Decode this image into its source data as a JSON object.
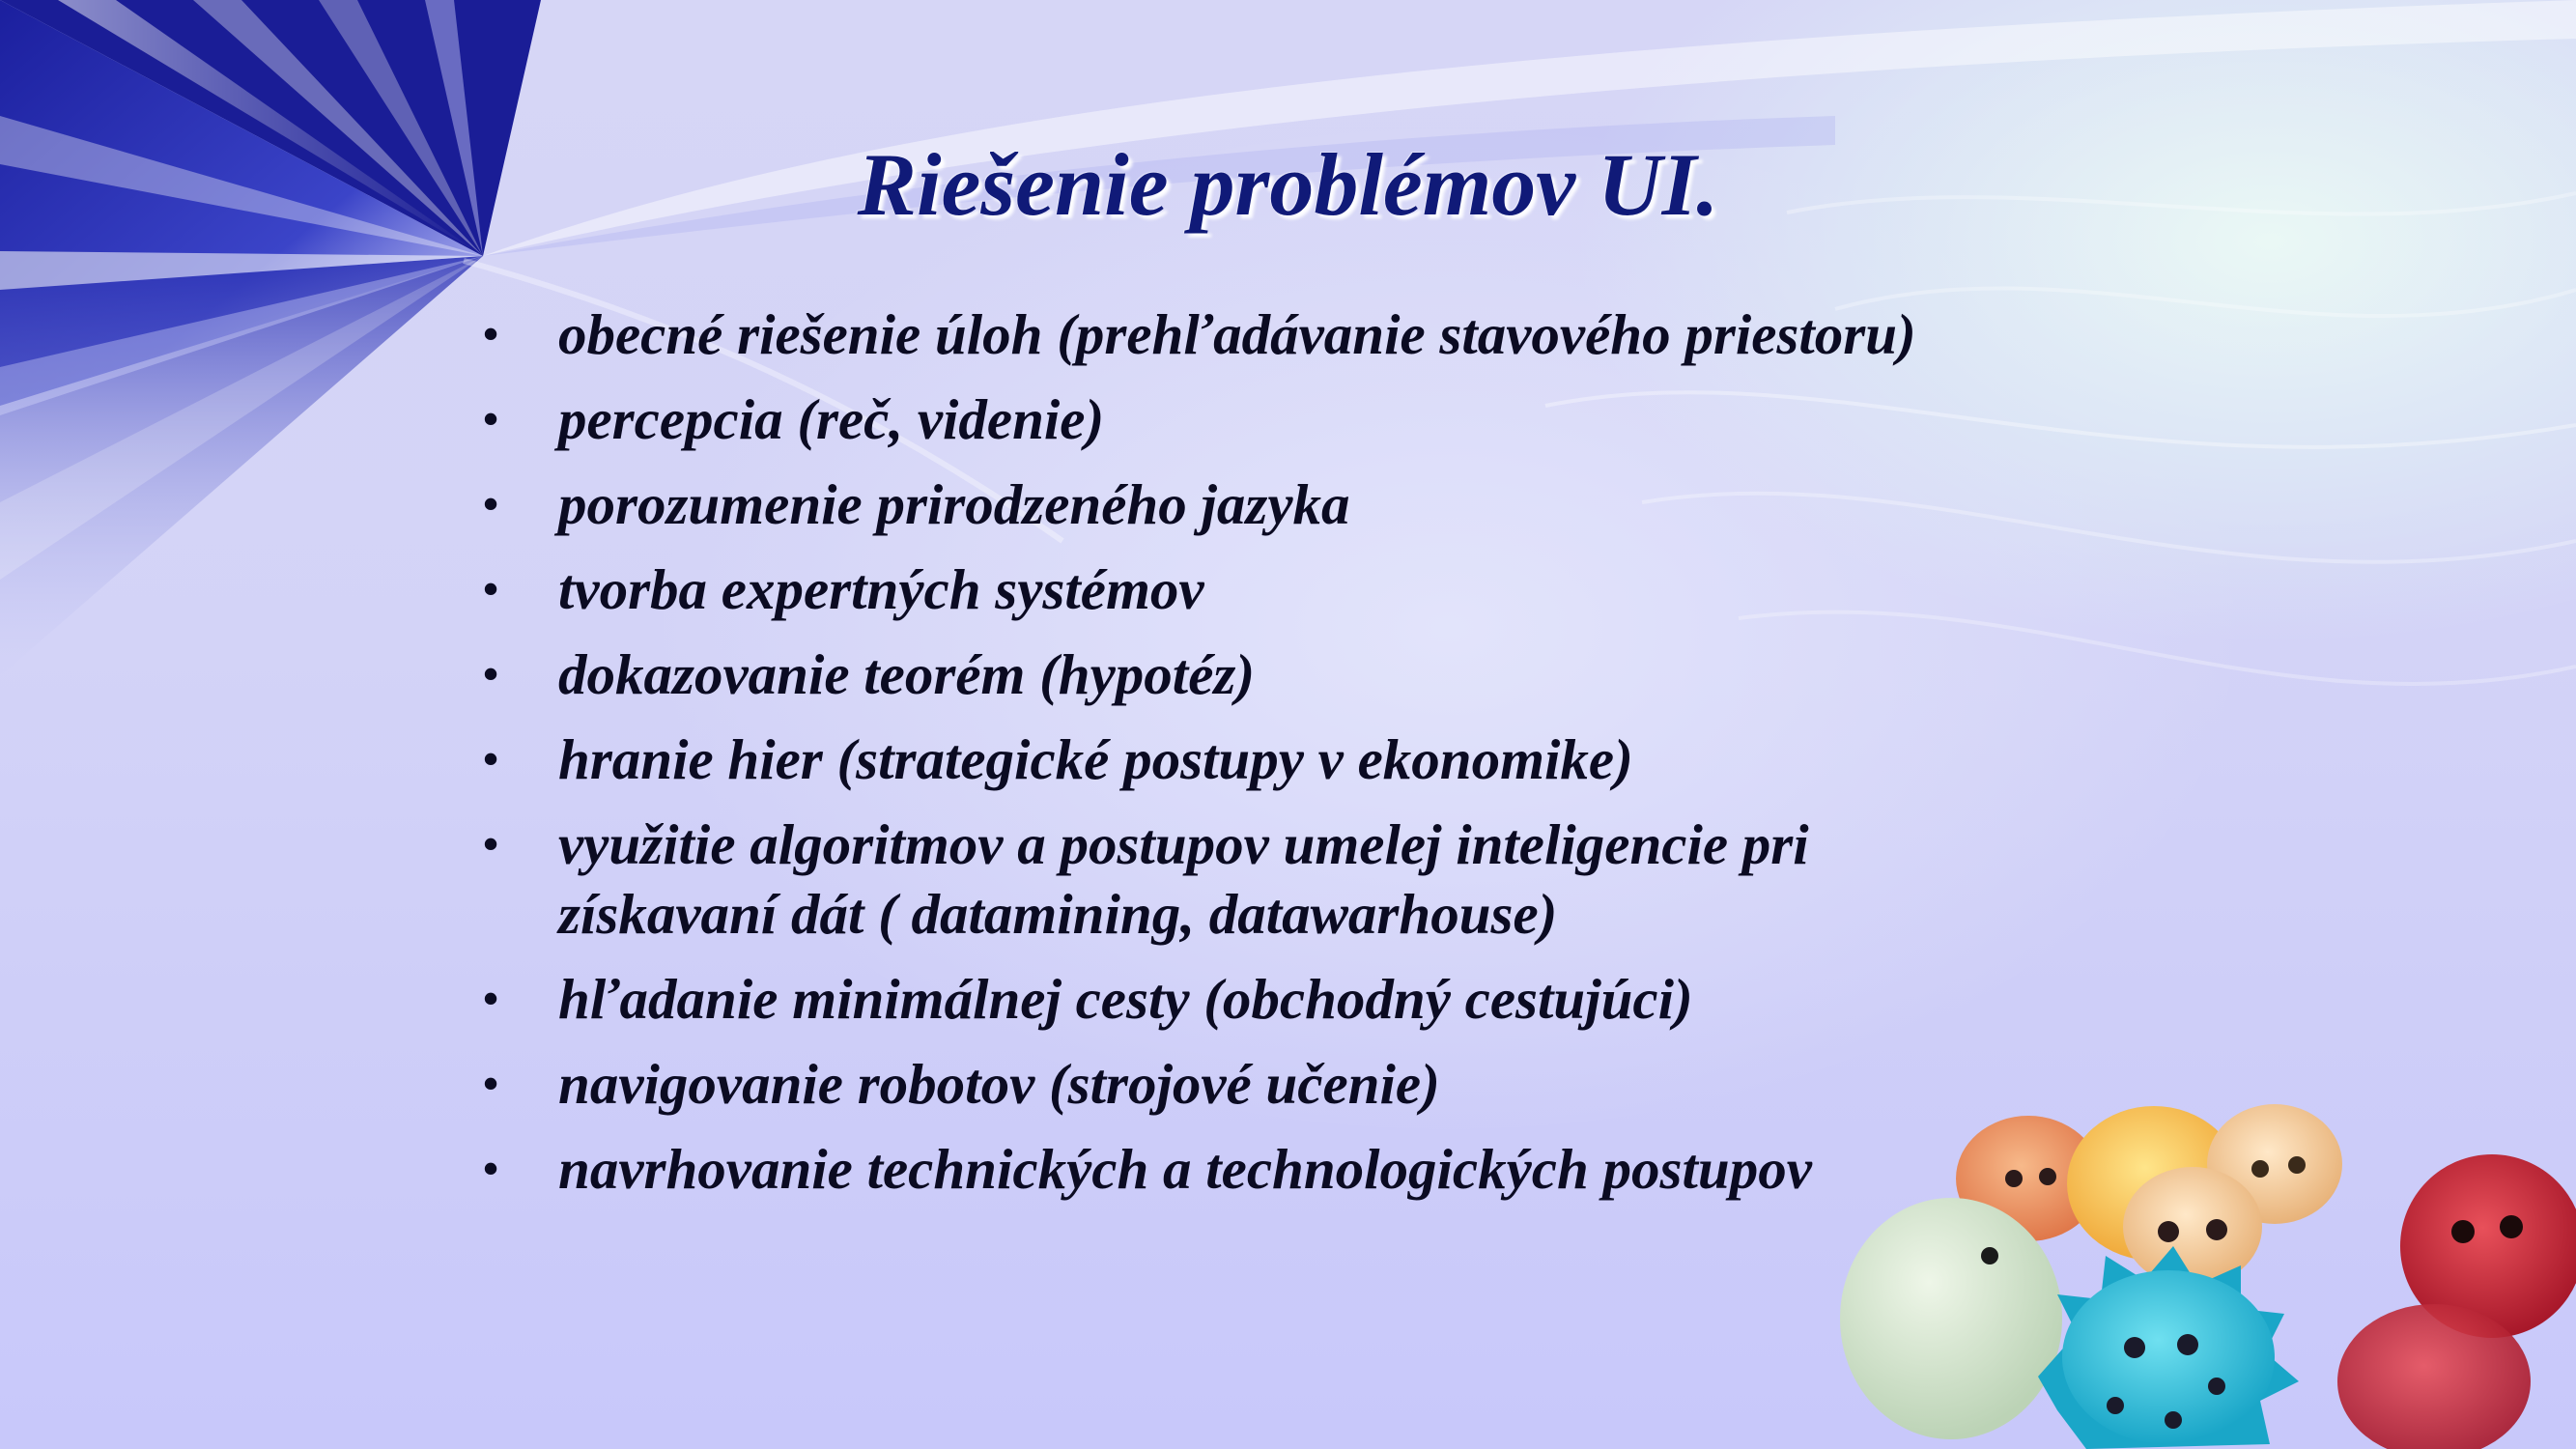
{
  "slide": {
    "title": "Riešenie problémov UI.",
    "bullet_symbol": "•",
    "items": [
      "obecné riešenie úloh (prehľadávanie stavového priestoru)",
      "percepcia (reč, videnie)",
      "porozumenie prirodzeného jazyka",
      "tvorba expertných systémov",
      "dokazovanie teorém (hypotéz)",
      "hranie hier (strategické postupy v ekonomike)",
      "využitie algoritmov a postupov umelej inteligencie pri získavaní dát ( datamining, datawarhouse)",
      "hľadanie minimálnej cesty (obchodný cestujúci)",
      "navigovanie robotov (strojové učenie)",
      "navrhovanie technických a technologických postupov"
    ]
  },
  "colors": {
    "title": "#101a78",
    "text": "#0b0b22",
    "background": "#d3d3f7",
    "accent_blue": "#1a1f9a"
  }
}
